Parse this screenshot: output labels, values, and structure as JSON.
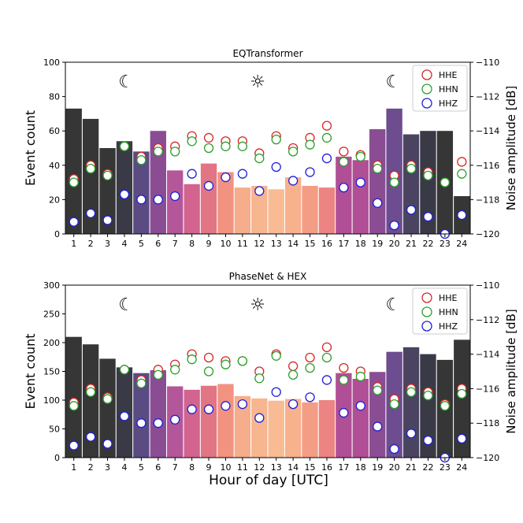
{
  "chart_data": [
    {
      "type": "bar",
      "title": "EQTransformer",
      "ylabel": "Event count",
      "y2label": "Noise amplitude [dB]",
      "xlabel": "",
      "ylim": [
        0,
        100
      ],
      "y2lim": [
        -120,
        -110
      ],
      "yticks": [
        "0",
        "20",
        "40",
        "60",
        "80",
        "100"
      ],
      "y2ticks": [
        "−120",
        "−118",
        "−116",
        "−114",
        "−112",
        "−110"
      ],
      "categories": [
        "1",
        "2",
        "3",
        "4",
        "5",
        "6",
        "7",
        "8",
        "9",
        "10",
        "11",
        "12",
        "13",
        "14",
        "15",
        "16",
        "17",
        "18",
        "19",
        "20",
        "21",
        "22",
        "23",
        "24"
      ],
      "values": [
        73,
        67,
        50,
        54,
        48,
        60,
        37,
        29,
        41,
        36,
        27,
        28,
        26,
        33,
        28,
        27,
        45,
        43,
        61,
        73,
        58,
        60,
        60,
        22
      ],
      "bar_colors": [
        "#363636",
        "#363636",
        "#363636",
        "#3a3a46",
        "#5a4b82",
        "#8a4d94",
        "#b4579a",
        "#d2648f",
        "#e27584",
        "#f29280",
        "#f6ad8c",
        "#f7b590",
        "#f8bb93",
        "#f7b18d",
        "#f49d85",
        "#eb8483",
        "#b04f96",
        "#b04f96",
        "#8a4d94",
        "#6d4c8f",
        "#4a4460",
        "#3a3a46",
        "#363636",
        "#363636"
      ],
      "series": [
        {
          "name": "HHE",
          "color": "#d62728",
          "values": [
            -116.8,
            -116.0,
            -116.5,
            -114.9,
            -115.5,
            -115.0,
            -114.9,
            -114.3,
            -114.4,
            -114.6,
            -114.6,
            -115.3,
            -114.3,
            -115.0,
            -114.4,
            -113.7,
            -115.2,
            -115.4,
            -116.0,
            -116.6,
            -116.0,
            -116.4,
            -117.0,
            -115.8
          ]
        },
        {
          "name": "HHN",
          "color": "#2ca02c",
          "values": [
            -117.0,
            -116.2,
            -116.6,
            -114.9,
            -115.7,
            -115.2,
            -115.2,
            -114.6,
            -115.0,
            -114.9,
            -114.9,
            -115.6,
            -114.5,
            -115.2,
            -114.8,
            -114.4,
            -115.8,
            -115.5,
            -116.2,
            -117.0,
            -116.2,
            -116.6,
            -117.0,
            -116.5
          ]
        },
        {
          "name": "HHZ",
          "color": "#1f1fd6",
          "values": [
            -119.3,
            -118.8,
            -119.2,
            -117.7,
            -118.0,
            -118.0,
            -117.8,
            -116.5,
            -117.2,
            -116.7,
            -116.5,
            -117.5,
            -116.1,
            -116.9,
            -116.4,
            -115.6,
            -117.3,
            -117.0,
            -118.2,
            -119.5,
            -118.6,
            -119.0,
            -120.0,
            -118.9
          ]
        }
      ],
      "annotations": [
        "☾",
        "☼",
        "☾"
      ]
    },
    {
      "type": "bar",
      "title": "PhaseNet & HEX",
      "ylabel": "Event count",
      "y2label": "Noise amplitude [dB]",
      "xlabel": "Hour of day [UTC]",
      "ylim": [
        0,
        300
      ],
      "y2lim": [
        -120,
        -110
      ],
      "yticks": [
        "0",
        "50",
        "100",
        "150",
        "200",
        "250",
        "300"
      ],
      "y2ticks": [
        "−120",
        "−118",
        "−116",
        "−114",
        "−112",
        "−110"
      ],
      "categories": [
        "1",
        "2",
        "3",
        "4",
        "5",
        "6",
        "7",
        "8",
        "9",
        "10",
        "11",
        "12",
        "13",
        "14",
        "15",
        "16",
        "17",
        "18",
        "19",
        "20",
        "21",
        "22",
        "23",
        "24"
      ],
      "values": [
        210,
        197,
        172,
        157,
        147,
        152,
        124,
        118,
        125,
        128,
        107,
        103,
        99,
        102,
        96,
        100,
        147,
        137,
        149,
        184,
        192,
        180,
        170,
        205
      ],
      "bar_colors": [
        "#363636",
        "#363636",
        "#363636",
        "#3a3a46",
        "#5a4b82",
        "#8a4d94",
        "#b4579a",
        "#d2648f",
        "#e27584",
        "#f29280",
        "#f6ad8c",
        "#f7b590",
        "#f8bb93",
        "#f7b18d",
        "#f49d85",
        "#eb8483",
        "#b04f96",
        "#b04f96",
        "#8a4d94",
        "#6d4c8f",
        "#4a4460",
        "#3a3a46",
        "#363636",
        "#363636"
      ],
      "series": [
        {
          "name": "HHE",
          "color": "#d62728",
          "values": [
            -116.8,
            -116.0,
            -116.5,
            -114.9,
            -115.5,
            -114.9,
            -114.6,
            -114.0,
            -114.2,
            -114.4,
            -114.4,
            -115.0,
            -114.0,
            -114.7,
            -114.2,
            -113.6,
            -114.8,
            -115.0,
            -115.9,
            -116.6,
            -116.0,
            -116.2,
            -116.9,
            -116.0
          ]
        },
        {
          "name": "HHN",
          "color": "#2ca02c",
          "values": [
            -117.0,
            -116.2,
            -116.6,
            -114.9,
            -115.7,
            -115.2,
            -114.9,
            -114.3,
            -115.0,
            -114.6,
            -114.4,
            -115.4,
            -114.1,
            -115.2,
            -114.8,
            -114.2,
            -115.5,
            -115.3,
            -116.1,
            -116.9,
            -116.2,
            -116.4,
            -117.0,
            -116.3
          ]
        },
        {
          "name": "HHZ",
          "color": "#1f1fd6",
          "values": [
            -119.3,
            -118.8,
            -119.2,
            -117.6,
            -118.0,
            -118.0,
            -117.8,
            -117.2,
            -117.2,
            -117.0,
            -116.9,
            -117.7,
            -116.2,
            -116.9,
            -116.5,
            -115.5,
            -117.4,
            -117.0,
            -118.2,
            -119.5,
            -118.6,
            -119.0,
            -120.0,
            -118.9
          ]
        }
      ],
      "annotations": [
        "☾",
        "☼",
        "☾"
      ]
    }
  ]
}
